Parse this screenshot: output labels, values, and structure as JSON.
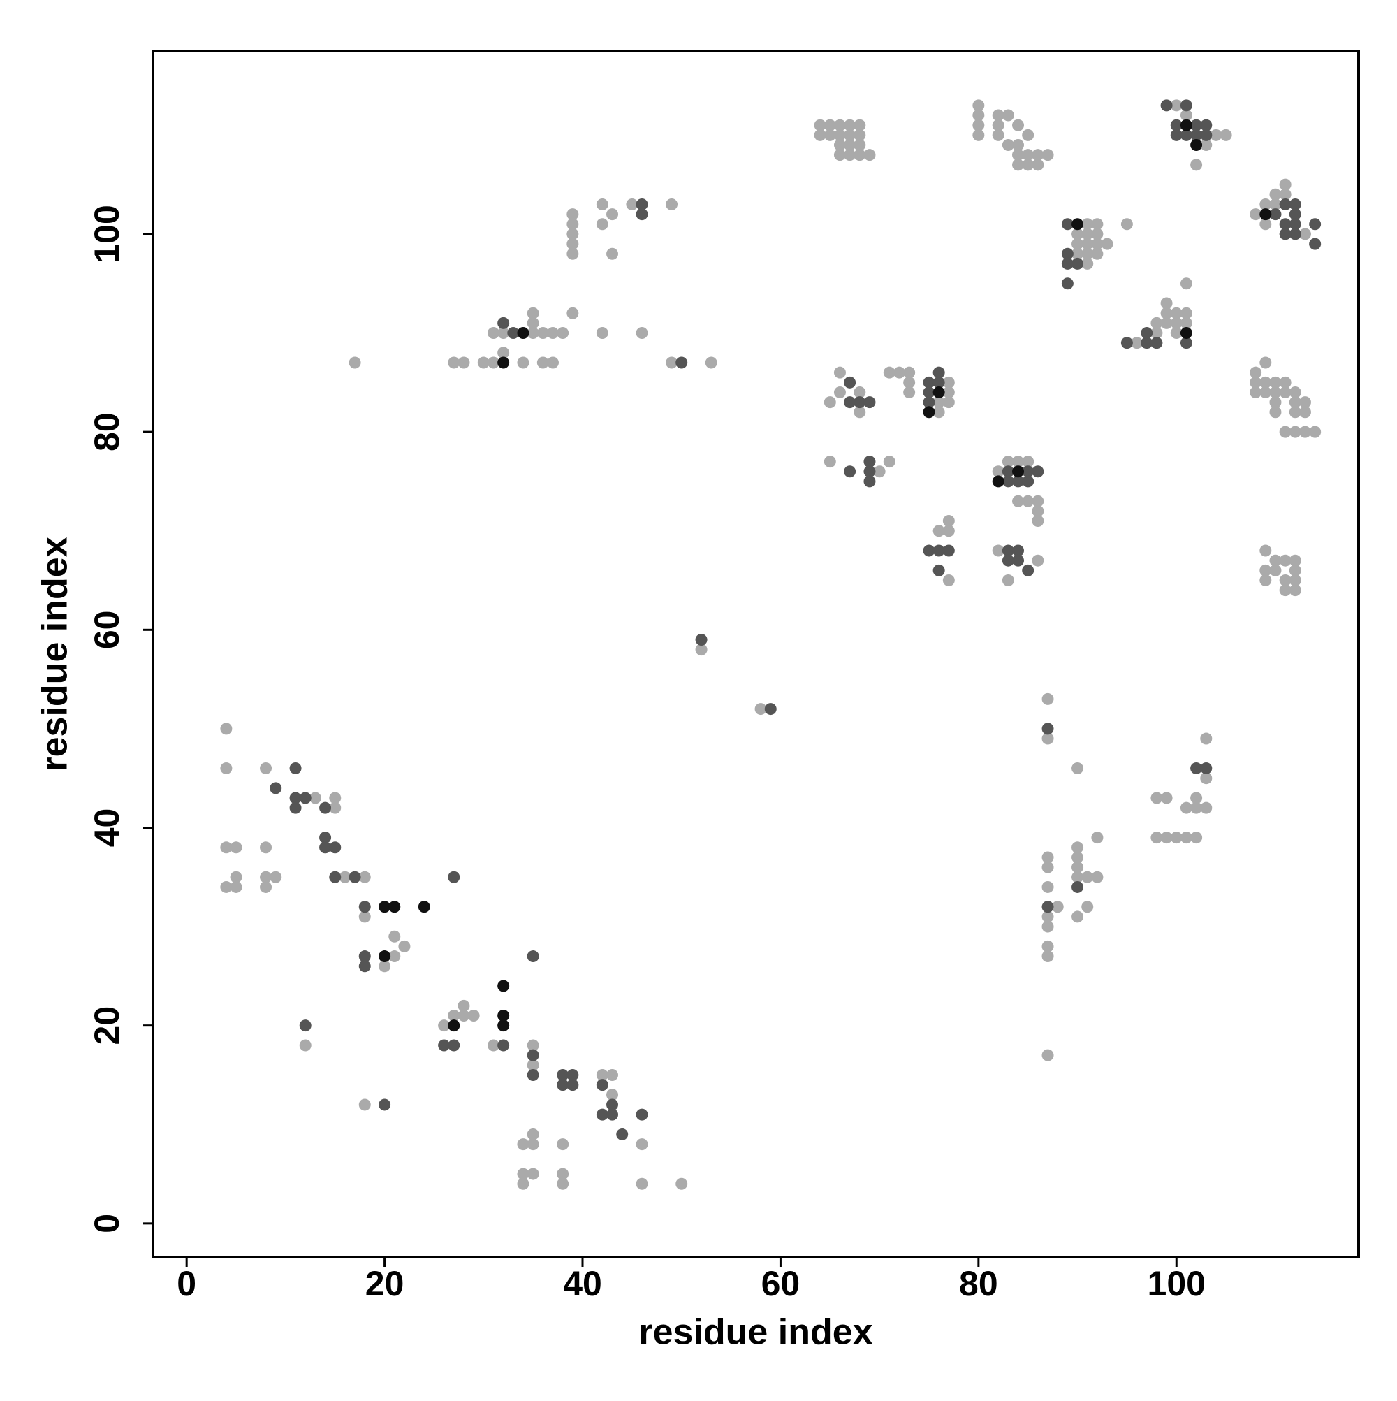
{
  "chart_data": {
    "type": "scatter",
    "xlabel": "residue index",
    "ylabel": "residue index",
    "xlim": [
      -3.4,
      118.4
    ],
    "ylim": [
      -3.4,
      118.5
    ],
    "xticks": [
      0,
      20,
      40,
      60,
      80,
      100
    ],
    "yticks": [
      0,
      20,
      40,
      60,
      80,
      100
    ],
    "series": [
      {
        "color": "#aaaaaa",
        "x": [
          4,
          4,
          4,
          5,
          4,
          5,
          5,
          8,
          8,
          8,
          9,
          8,
          13,
          15,
          15,
          16,
          18,
          18,
          20,
          21,
          21,
          22,
          12,
          18,
          26,
          27,
          28,
          28,
          29,
          31,
          35,
          35,
          34,
          35,
          35,
          38,
          34,
          35,
          34,
          38,
          38,
          42,
          43,
          43,
          46,
          46,
          50,
          17,
          27,
          28,
          30,
          31,
          31,
          32,
          32,
          34,
          35,
          36,
          37,
          38,
          36,
          37,
          35,
          35,
          39,
          39,
          39,
          39,
          39,
          39,
          42,
          42,
          42,
          43,
          43,
          45,
          46,
          49,
          49,
          53,
          52,
          58,
          64,
          64,
          65,
          65,
          66,
          66,
          66,
          66,
          67,
          67,
          67,
          67,
          68,
          68,
          68,
          68,
          69,
          80,
          80,
          80,
          80,
          82,
          82,
          82,
          83,
          83,
          84,
          84,
          84,
          84,
          85,
          85,
          85,
          86,
          86,
          87,
          100,
          101,
          102,
          103,
          104,
          105,
          65,
          66,
          66,
          68,
          68,
          65,
          70,
          71,
          71,
          72,
          73,
          73,
          73,
          76,
          76,
          77,
          77,
          77,
          76,
          77,
          77,
          77,
          82,
          82,
          83,
          83,
          84,
          84,
          85,
          85,
          86,
          86,
          86,
          86,
          90,
          90,
          90,
          91,
          91,
          91,
          91,
          91,
          92,
          92,
          92,
          92,
          93,
          95,
          98,
          98,
          99,
          99,
          99,
          100,
          100,
          100,
          101,
          101,
          101,
          96,
          108,
          109,
          109,
          110,
          110,
          111,
          111,
          113,
          108,
          108,
          108,
          109,
          109,
          109,
          110,
          110,
          110,
          110,
          111,
          111,
          112,
          112,
          112,
          113,
          113,
          111,
          112,
          113,
          114,
          109,
          109,
          109,
          110,
          110,
          111,
          111,
          112,
          112,
          112,
          112,
          111,
          87,
          87,
          87,
          87,
          87,
          87,
          87,
          87,
          87,
          88,
          87,
          90,
          90,
          90,
          90,
          90,
          90,
          91,
          91,
          92,
          92,
          98,
          99,
          98,
          99,
          100,
          101,
          102,
          101,
          102,
          102,
          103,
          103,
          103
        ],
        "y": [
          50,
          46,
          38,
          38,
          34,
          34,
          35,
          46,
          38,
          35,
          35,
          34,
          43,
          43,
          42,
          35,
          35,
          31,
          26,
          27,
          29,
          28,
          18,
          12,
          20,
          21,
          21,
          22,
          21,
          18,
          18,
          16,
          8,
          8,
          9,
          8,
          5,
          5,
          4,
          5,
          4,
          15,
          15,
          13,
          8,
          4,
          4,
          87,
          87,
          87,
          87,
          87,
          90,
          90,
          88,
          87,
          90,
          90,
          90,
          90,
          87,
          87,
          92,
          91,
          92,
          102,
          101,
          100,
          99,
          98,
          90,
          103,
          101,
          102,
          98,
          103,
          90,
          103,
          87,
          87,
          58,
          52,
          111,
          110,
          111,
          110,
          111,
          110,
          109,
          108,
          111,
          110,
          109,
          108,
          111,
          110,
          109,
          108,
          108,
          113,
          112,
          111,
          110,
          112,
          111,
          110,
          112,
          109,
          111,
          109,
          108,
          107,
          110,
          108,
          107,
          108,
          107,
          108,
          113,
          112,
          107,
          109,
          110,
          110,
          83,
          86,
          84,
          84,
          82,
          77,
          76,
          77,
          86,
          86,
          86,
          85,
          84,
          83,
          82,
          85,
          84,
          83,
          70,
          71,
          70,
          65,
          76,
          68,
          77,
          65,
          77,
          73,
          77,
          73,
          73,
          72,
          71,
          67,
          100,
          99,
          98,
          101,
          100,
          99,
          98,
          97,
          101,
          100,
          99,
          98,
          99,
          101,
          91,
          90,
          93,
          92,
          91,
          92,
          91,
          90,
          92,
          91,
          95,
          89,
          102,
          103,
          101,
          104,
          103,
          105,
          104,
          100,
          86,
          85,
          84,
          87,
          85,
          84,
          85,
          84,
          83,
          82,
          85,
          84,
          84,
          83,
          82,
          83,
          82,
          80,
          80,
          80,
          80,
          68,
          66,
          65,
          67,
          66,
          67,
          65,
          67,
          66,
          65,
          64,
          64,
          53,
          49,
          37,
          36,
          34,
          31,
          30,
          28,
          27,
          32,
          17,
          46,
          38,
          37,
          36,
          35,
          31,
          35,
          32,
          35,
          39,
          43,
          43,
          39,
          39,
          39,
          39,
          39,
          42,
          43,
          42,
          42,
          45,
          49
        ]
      },
      {
        "color": "#555555",
        "x": [
          11,
          9,
          11,
          12,
          11,
          14,
          14,
          14,
          15,
          15,
          17,
          18,
          18,
          18,
          27,
          12,
          20,
          26,
          27,
          32,
          35,
          35,
          35,
          38,
          38,
          39,
          39,
          42,
          42,
          43,
          43,
          44,
          46,
          33,
          32,
          46,
          46,
          50,
          52,
          59,
          67,
          67,
          68,
          69,
          67,
          69,
          69,
          69,
          75,
          75,
          75,
          76,
          76,
          75,
          76,
          77,
          76,
          83,
          83,
          83,
          84,
          84,
          84,
          85,
          85,
          86,
          83,
          85,
          89,
          89,
          89,
          89,
          90,
          95,
          97,
          97,
          98,
          101,
          99,
          101,
          100,
          100,
          101,
          102,
          102,
          103,
          103,
          110,
          111,
          111,
          112,
          112,
          112,
          112,
          114,
          114,
          111,
          87,
          87,
          90,
          102,
          103
        ],
        "y": [
          46,
          44,
          43,
          43,
          42,
          42,
          39,
          38,
          38,
          35,
          35,
          32,
          27,
          26,
          35,
          20,
          12,
          18,
          18,
          18,
          27,
          17,
          15,
          15,
          14,
          15,
          14,
          14,
          11,
          12,
          11,
          9,
          11,
          90,
          91,
          103,
          102,
          87,
          59,
          52,
          85,
          83,
          83,
          83,
          76,
          77,
          76,
          75,
          85,
          84,
          83,
          86,
          85,
          68,
          68,
          68,
          66,
          76,
          75,
          68,
          75,
          68,
          67,
          76,
          75,
          76,
          67,
          66,
          101,
          98,
          97,
          95,
          97,
          89,
          89,
          90,
          89,
          89,
          113,
          113,
          111,
          110,
          110,
          111,
          110,
          111,
          110,
          102,
          103,
          101,
          103,
          102,
          101,
          100,
          101,
          99,
          100,
          50,
          32,
          34,
          46,
          46
        ]
      },
      {
        "color": "#111111",
        "x": [
          20,
          21,
          24,
          20,
          27,
          32,
          32,
          32,
          32,
          34,
          75,
          76,
          82,
          84,
          90,
          101,
          102,
          109,
          101
        ],
        "y": [
          32,
          32,
          32,
          27,
          20,
          24,
          21,
          20,
          87,
          90,
          82,
          84,
          75,
          76,
          101,
          90,
          109,
          102,
          111
        ]
      }
    ]
  }
}
